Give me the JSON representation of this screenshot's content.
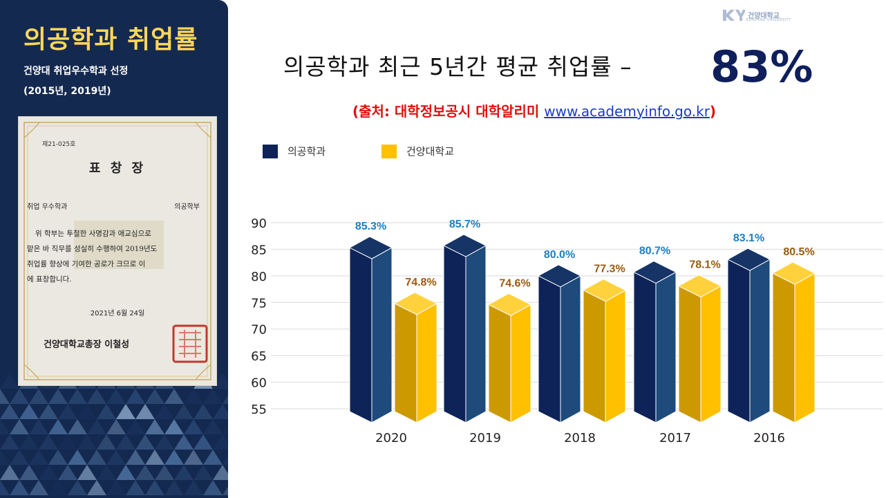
{
  "left_panel": {
    "title": "의공학과 취업률",
    "subtitle_line1": "건양대 취업우수학과 선정",
    "subtitle_line2": "(2015년, 2019년)"
  },
  "certificate": {
    "number": "제21-025호",
    "title": "표 창 장",
    "award": "취업 우수학과",
    "department": "의공학부",
    "body_lines": [
      "위 학부는 투철한 사명감과 애교심으로",
      "맡은 바 직무를 성실히 수행하여 2019년도",
      "취업률 향상에 기여한 공로가 크므로 이",
      "에 표창합니다."
    ],
    "date": "2021년 6월 24일",
    "signer": "건양대학교총장 이철성"
  },
  "logo": {
    "mark": "KY",
    "text": "건양대학교",
    "english": "KONYANG UNIVERSITY"
  },
  "header": {
    "title": "의공학과 최근 5년간 평균 취업률 –",
    "percent": "83%",
    "source_prefix": "(출처: 대학정보공시 대학알리미 ",
    "source_link": "www.academyinfo.go.kr",
    "source_suffix": ")"
  },
  "colors": {
    "panel": "#14294f",
    "title_accent": "#ffd75a",
    "series1_front": "#0e2358",
    "series1_side": "#1e4a7c",
    "series1_top": "#163466",
    "series2_front": "#cc9a00",
    "series2_side": "#ffc000",
    "series2_top": "#ffd23d",
    "label1": "#1b7fc4",
    "label2": "#9a5a12"
  },
  "chart_data": {
    "type": "bar",
    "categories": [
      "2020",
      "2019",
      "2018",
      "2017",
      "2016"
    ],
    "series": [
      {
        "name": "의공학과",
        "values": [
          85.3,
          85.7,
          80.0,
          80.7,
          83.1
        ],
        "labels": [
          "85.3%",
          "85.7%",
          "80.0%",
          "80.7%",
          "83.1%"
        ]
      },
      {
        "name": "건양대학교",
        "values": [
          74.8,
          74.6,
          77.3,
          78.1,
          80.5
        ],
        "labels": [
          "74.8%",
          "74.6%",
          "77.3%",
          "78.1%",
          "80.5%"
        ]
      }
    ],
    "yticks": [
      55,
      60,
      65,
      70,
      75,
      80,
      85,
      90
    ],
    "ylim": [
      55,
      90
    ],
    "grid": true,
    "legend": "top-left"
  }
}
